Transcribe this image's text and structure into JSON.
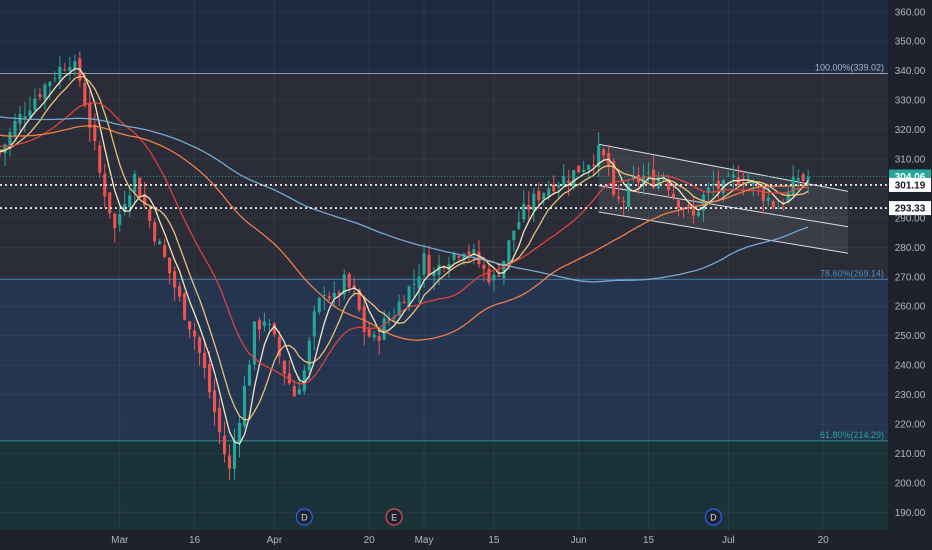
{
  "chart_data": {
    "type": "candlestick",
    "title": "",
    "xlabel": "",
    "ylabel": "",
    "ylim": [
      184,
      364
    ],
    "y_ticks": [
      190,
      200,
      210,
      220,
      230,
      240,
      250,
      260,
      270,
      280,
      290,
      300,
      310,
      320,
      330,
      340,
      350,
      360
    ],
    "x_ticks": [
      {
        "label": "Mar",
        "day": 24
      },
      {
        "label": "16",
        "day": 39
      },
      {
        "label": "Apr",
        "day": 55
      },
      {
        "label": "20",
        "day": 74
      },
      {
        "label": "May",
        "day": 85
      },
      {
        "label": "15",
        "day": 99
      },
      {
        "label": "Jun",
        "day": 116
      },
      {
        "label": "15",
        "day": 130
      },
      {
        "label": "Jul",
        "day": 146
      },
      {
        "label": "20",
        "day": 165
      }
    ],
    "price_path": [
      [
        0,
        312
      ],
      [
        3,
        322
      ],
      [
        7,
        331
      ],
      [
        11,
        339
      ],
      [
        14,
        344
      ],
      [
        16,
        337
      ],
      [
        18,
        322
      ],
      [
        20,
        305
      ],
      [
        22,
        293
      ],
      [
        23,
        286
      ],
      [
        25,
        297
      ],
      [
        27,
        304
      ],
      [
        28,
        299
      ],
      [
        30,
        289
      ],
      [
        33,
        276
      ],
      [
        36,
        262
      ],
      [
        39,
        250
      ],
      [
        41,
        238
      ],
      [
        43,
        224
      ],
      [
        45,
        210
      ],
      [
        46,
        204
      ],
      [
        47,
        214
      ],
      [
        49,
        232
      ],
      [
        51,
        252
      ],
      [
        53,
        256
      ],
      [
        55,
        248
      ],
      [
        57,
        238
      ],
      [
        59,
        230
      ],
      [
        61,
        238
      ],
      [
        63,
        256
      ],
      [
        65,
        266
      ],
      [
        67,
        262
      ],
      [
        69,
        268
      ],
      [
        71,
        264
      ],
      [
        73,
        252
      ],
      [
        75,
        248
      ],
      [
        77,
        254
      ],
      [
        79,
        258
      ],
      [
        81,
        264
      ],
      [
        83,
        268
      ],
      [
        85,
        276
      ],
      [
        87,
        271
      ],
      [
        89,
        276
      ],
      [
        91,
        278
      ],
      [
        93,
        280
      ],
      [
        95,
        277
      ],
      [
        97,
        272
      ],
      [
        99,
        269
      ],
      [
        101,
        276
      ],
      [
        103,
        286
      ],
      [
        105,
        292
      ],
      [
        108,
        298
      ],
      [
        111,
        302
      ],
      [
        114,
        304
      ],
      [
        117,
        308
      ],
      [
        120,
        312
      ],
      [
        122,
        308
      ],
      [
        123,
        295
      ],
      [
        125,
        296
      ],
      [
        127,
        302
      ],
      [
        129,
        304
      ],
      [
        131,
        303
      ],
      [
        133,
        305
      ],
      [
        135,
        298
      ],
      [
        137,
        294
      ],
      [
        139,
        290
      ],
      [
        141,
        297
      ],
      [
        143,
        301
      ],
      [
        145,
        300
      ],
      [
        147,
        303
      ],
      [
        149,
        304
      ],
      [
        151,
        301
      ],
      [
        153,
        298
      ],
      [
        155,
        295
      ],
      [
        156,
        294
      ],
      [
        158,
        298
      ],
      [
        160,
        304
      ],
      [
        162,
        302
      ]
    ],
    "moving_averages": [
      {
        "color": "#fff3c4",
        "period": 5
      },
      {
        "color": "#f5c77e",
        "period": 9
      },
      {
        "color": "#e0443e",
        "period": 20
      },
      {
        "color": "#f7824d",
        "period": 50
      },
      {
        "color": "#7aaed6",
        "period": 100
      }
    ],
    "price_labels": [
      {
        "label": "304.06",
        "value": 304.06,
        "style": "last"
      },
      {
        "label": "301.19",
        "value": 301.19,
        "style": "line"
      },
      {
        "label": "293.33",
        "value": 293.33,
        "style": "line"
      }
    ],
    "fib_levels": [
      {
        "label": "100.00%(339.02)",
        "value": 339.02,
        "color": "#a8b4c8"
      },
      {
        "label": "78.60%(269.14)",
        "value": 269.14,
        "color": "#4a90c8"
      },
      {
        "label": "61.80%(214.29)",
        "value": 214.29,
        "color": "#26a69a"
      }
    ],
    "channel": {
      "upper": {
        "start_day": 120,
        "start_value": 315,
        "end_day": 170,
        "end_value": 299
      },
      "lower": {
        "start_day": 120,
        "start_value": 301,
        "end_day": 170,
        "end_value": 287
      },
      "lower2": {
        "start_day": 120,
        "start_value": 292,
        "end_day": 170,
        "end_value": 278
      }
    },
    "events": [
      {
        "label": "D",
        "day": 61,
        "color": "#2962ff"
      },
      {
        "label": "E",
        "day": 79,
        "color": "#e84a5f"
      },
      {
        "label": "D",
        "day": 143,
        "color": "#2962ff"
      }
    ],
    "colors": {
      "up": "#26a69a",
      "down": "#ef5350",
      "background": "#1e222d",
      "zone_top": "#1c2b40",
      "zone_mid": "#2a2c37",
      "zone_low": "#253550",
      "zone_bottom": "#1b3238"
    }
  }
}
